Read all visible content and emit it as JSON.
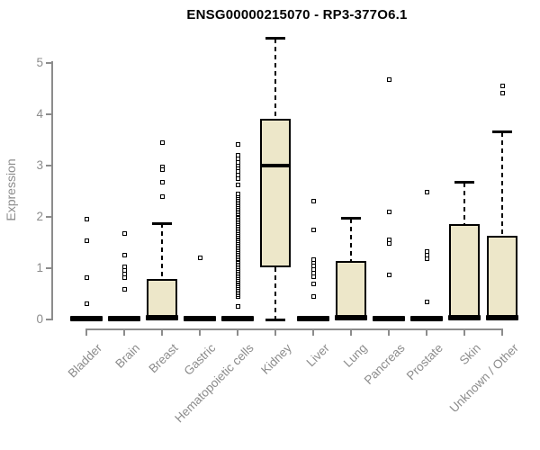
{
  "title": "ENSG00000215070 - RP3-377O6.1",
  "chart_data": {
    "type": "boxplot",
    "title": "ENSG00000215070 - RP3-377O6.1",
    "xlabel": "",
    "ylabel": "Expression",
    "ylim": [
      0,
      5.5
    ],
    "yticks": [
      0,
      1,
      2,
      3,
      4,
      5
    ],
    "grid": false,
    "legend": "none",
    "colors": {
      "box_fill": "#EDE7C9",
      "box_stroke": "#000000",
      "axis": "#8C8C8C",
      "label_text": "#8C8C8C",
      "title_text": "#000000",
      "background": "#FFFFFF"
    },
    "categories": [
      "Bladder",
      "Brain",
      "Breast",
      "Gastric",
      "Hematopoietic cells",
      "Kidney",
      "Liver",
      "Lung",
      "Pancreas",
      "Prostate",
      "Skin",
      "Unknown / Other"
    ],
    "boxes": [
      {
        "label": "Bladder",
        "collapsed": true,
        "median": 0.02,
        "outliers": [
          1.96,
          1.53,
          0.82,
          0.3
        ]
      },
      {
        "label": "Brain",
        "collapsed": true,
        "median": 0.02,
        "outliers": [
          1.67,
          1.26,
          1.02,
          0.96,
          0.89,
          0.82,
          0.58
        ]
      },
      {
        "label": "Breast",
        "collapsed": false,
        "q1": 0.02,
        "median": 0.04,
        "q3": 0.79,
        "whisker_high": 1.87,
        "outliers": [
          3.44,
          2.97,
          2.92,
          2.68,
          2.39
        ]
      },
      {
        "label": "Gastric",
        "collapsed": true,
        "median": 0.02,
        "outliers": [
          1.21
        ]
      },
      {
        "label": "Hematopoietic cells",
        "collapsed": true,
        "median": 0.02,
        "outliers": [
          3.42,
          3.21,
          3.14,
          3.07,
          3.0,
          2.93,
          2.89,
          2.82,
          2.75,
          2.63,
          0.26
        ],
        "outlier_band": {
          "min": 0.45,
          "max": 2.44,
          "count": 60
        }
      },
      {
        "label": "Kidney",
        "collapsed": false,
        "q1": 1.02,
        "median": 3.0,
        "q3": 3.92,
        "whisker_high": 5.48,
        "whisker_low": 0.0,
        "outliers": []
      },
      {
        "label": "Liver",
        "collapsed": true,
        "median": 0.02,
        "outliers": [
          2.31,
          1.75,
          1.17,
          1.1,
          1.04,
          0.98,
          0.91,
          0.84,
          0.7,
          0.44
        ]
      },
      {
        "label": "Lung",
        "collapsed": false,
        "q1": 0.02,
        "median": 0.04,
        "q3": 1.14,
        "whisker_high": 1.97,
        "outliers": []
      },
      {
        "label": "Pancreas",
        "collapsed": true,
        "median": 0.02,
        "outliers": [
          4.68,
          2.1,
          1.55,
          1.48,
          0.86
        ]
      },
      {
        "label": "Prostate",
        "collapsed": true,
        "median": 0.02,
        "outliers": [
          2.49,
          1.32,
          1.25,
          1.18,
          0.35
        ]
      },
      {
        "label": "Skin",
        "collapsed": false,
        "q1": 0.02,
        "median": 0.04,
        "q3": 1.86,
        "whisker_high": 2.67,
        "outliers": []
      },
      {
        "label": "Unknown / Other",
        "collapsed": false,
        "q1": 0.02,
        "median": 0.04,
        "q3": 1.63,
        "whisker_high": 3.65,
        "outliers": [
          4.56,
          4.42
        ]
      }
    ]
  }
}
